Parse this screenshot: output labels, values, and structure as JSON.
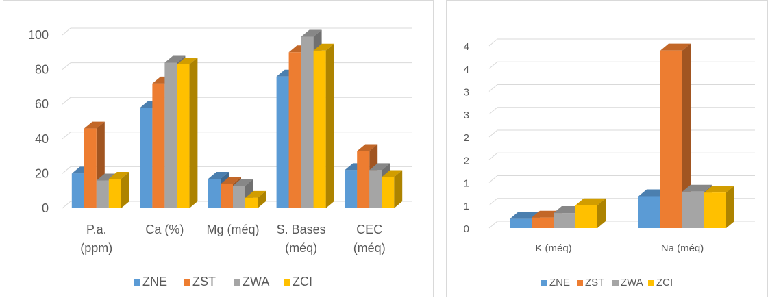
{
  "colors": {
    "ZNE": "#5b9bd5",
    "ZST": "#ed7d31",
    "ZWA": "#a5a5a5",
    "ZCI": "#ffc000",
    "gridline": "#d9d9d9",
    "text": "#595959"
  },
  "chart_data": [
    {
      "type": "bar",
      "style": "3d-clustered-column",
      "categories": [
        [
          "P.a.",
          "(ppm)"
        ],
        [
          "Ca (%)"
        ],
        [
          "Mg (méq)"
        ],
        [
          "S. Bases",
          "(méq)"
        ],
        [
          "CEC",
          "(méq)"
        ]
      ],
      "series": [
        {
          "name": "ZNE",
          "values": [
            20,
            58,
            17,
            76,
            22
          ]
        },
        {
          "name": "ZST",
          "values": [
            46,
            72,
            14,
            90,
            33
          ]
        },
        {
          "name": "ZWA",
          "values": [
            16,
            84,
            13,
            99,
            22
          ]
        },
        {
          "name": "ZCI",
          "values": [
            17,
            83,
            6,
            91,
            18
          ]
        }
      ],
      "y_ticks": [
        "0",
        "20",
        "40",
        "60",
        "80",
        "100"
      ],
      "ylim": [
        0,
        100
      ],
      "legend": "bottom",
      "grid": true
    },
    {
      "type": "bar",
      "style": "3d-clustered-column",
      "categories": [
        [
          "K (méq)"
        ],
        [
          "Na (méq)"
        ]
      ],
      "series": [
        {
          "name": "ZNE",
          "values": [
            0.2,
            0.7
          ]
        },
        {
          "name": "ZST",
          "values": [
            0.23,
            3.9
          ]
        },
        {
          "name": "ZWA",
          "values": [
            0.33,
            0.8
          ]
        },
        {
          "name": "ZCI",
          "values": [
            0.5,
            0.78
          ]
        }
      ],
      "y_ticks": [
        "0",
        "1",
        "1",
        "2",
        "2",
        "3",
        "3",
        "4",
        "4"
      ],
      "ylim": [
        0,
        4
      ],
      "legend": "bottom",
      "grid": true
    }
  ]
}
